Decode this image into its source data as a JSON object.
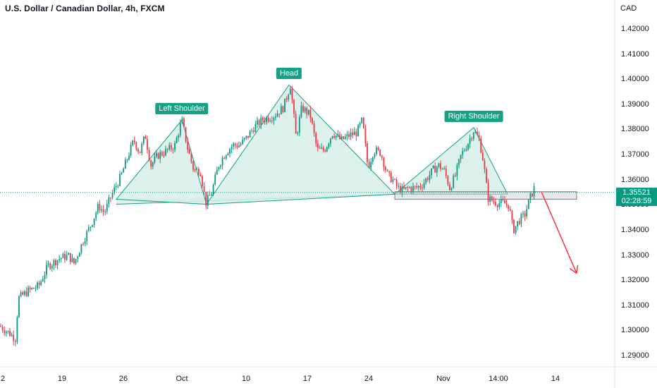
{
  "header": {
    "title": "U.S. Dollar / Canadian Dollar, 4h, FXCM",
    "currency": "CAD"
  },
  "price_badge": {
    "price": "1.35521",
    "countdown": "02:28:59"
  },
  "colors": {
    "up": "#089981",
    "down": "#f23645",
    "pattern_fill": "#d6efe8",
    "pattern_line": "#16a085",
    "arrow": "#f23645",
    "label_bg": "#16a085"
  },
  "chart_data": {
    "type": "candlestick",
    "symbol": "USDCAD",
    "timeframe": "4h",
    "y_axis": {
      "min": 1.285,
      "max": 1.425,
      "ticks": [
        "1.29000",
        "1.30000",
        "1.31000",
        "1.32000",
        "1.33000",
        "1.34000",
        "1.35000",
        "1.36000",
        "1.37000",
        "1.38000",
        "1.39000",
        "1.40000",
        "1.41000",
        "1.42000"
      ]
    },
    "x_axis": {
      "ticks": [
        "2",
        "19",
        "26",
        "Oct",
        "10",
        "17",
        "24",
        "Nov",
        "14:00",
        "14"
      ]
    },
    "last_price": 1.35521,
    "path": [
      [
        0,
        1.302
      ],
      [
        14,
        1.299
      ],
      [
        22,
        1.297
      ],
      [
        26,
        1.313
      ],
      [
        40,
        1.316
      ],
      [
        55,
        1.318
      ],
      [
        68,
        1.326
      ],
      [
        85,
        1.329
      ],
      [
        97,
        1.33
      ],
      [
        105,
        1.327
      ],
      [
        118,
        1.336
      ],
      [
        130,
        1.343
      ],
      [
        140,
        1.35
      ],
      [
        148,
        1.347
      ],
      [
        158,
        1.354
      ],
      [
        172,
        1.362
      ],
      [
        182,
        1.37
      ],
      [
        190,
        1.376
      ],
      [
        198,
        1.371
      ],
      [
        206,
        1.378
      ],
      [
        214,
        1.366
      ],
      [
        224,
        1.37
      ],
      [
        238,
        1.372
      ],
      [
        248,
        1.374
      ],
      [
        258,
        1.384
      ],
      [
        266,
        1.373
      ],
      [
        275,
        1.364
      ],
      [
        284,
        1.364
      ],
      [
        292,
        1.351
      ],
      [
        300,
        1.355
      ],
      [
        310,
        1.366
      ],
      [
        320,
        1.371
      ],
      [
        330,
        1.374
      ],
      [
        340,
        1.374
      ],
      [
        350,
        1.377
      ],
      [
        360,
        1.381
      ],
      [
        372,
        1.384
      ],
      [
        390,
        1.386
      ],
      [
        402,
        1.389
      ],
      [
        412,
        1.398
      ],
      [
        420,
        1.377
      ],
      [
        428,
        1.389
      ],
      [
        440,
        1.386
      ],
      [
        450,
        1.372
      ],
      [
        460,
        1.372
      ],
      [
        472,
        1.379
      ],
      [
        484,
        1.376
      ],
      [
        496,
        1.378
      ],
      [
        506,
        1.379
      ],
      [
        514,
        1.384
      ],
      [
        522,
        1.365
      ],
      [
        530,
        1.372
      ],
      [
        540,
        1.371
      ],
      [
        550,
        1.362
      ],
      [
        558,
        1.36
      ],
      [
        564,
        1.357
      ],
      [
        572,
        1.356
      ],
      [
        580,
        1.357
      ],
      [
        590,
        1.357
      ],
      [
        598,
        1.358
      ],
      [
        606,
        1.361
      ],
      [
        614,
        1.364
      ],
      [
        622,
        1.366
      ],
      [
        630,
        1.364
      ],
      [
        638,
        1.357
      ],
      [
        646,
        1.362
      ],
      [
        654,
        1.37
      ],
      [
        664,
        1.375
      ],
      [
        672,
        1.38
      ],
      [
        680,
        1.376
      ],
      [
        686,
        1.367
      ],
      [
        692,
        1.353
      ],
      [
        698,
        1.352
      ],
      [
        706,
        1.351
      ],
      [
        714,
        1.351
      ],
      [
        722,
        1.35
      ],
      [
        728,
        1.34
      ],
      [
        736,
        1.344
      ],
      [
        744,
        1.346
      ],
      [
        752,
        1.353
      ],
      [
        758,
        1.357
      ]
    ],
    "annotations": {
      "labels": [
        "Left Shoulder",
        "Head",
        "Right Shoulder"
      ],
      "left_shoulder": {
        "triangle": [
          [
            165,
            1.3525
          ],
          [
            258,
            1.384
          ],
          [
            293,
            1.3505
          ]
        ]
      },
      "head": {
        "triangle": [
          [
            293,
            1.3505
          ],
          [
            410,
            1.398
          ],
          [
            560,
            1.3545
          ]
        ]
      },
      "right_shoulder": {
        "triangle": [
          [
            560,
            1.3545
          ],
          [
            672,
            1.381
          ],
          [
            720,
            1.3545
          ]
        ]
      },
      "neckline_band": [
        [
          165,
          1.3505
        ],
        [
          560,
          1.3545
        ]
      ],
      "support_zone": {
        "x": [
          560,
          818
        ],
        "y": [
          1.3525,
          1.3555
        ]
      },
      "target_arrow": {
        "from": [
          768,
          1.3555
        ],
        "to": [
          818,
          1.323
        ]
      }
    }
  }
}
